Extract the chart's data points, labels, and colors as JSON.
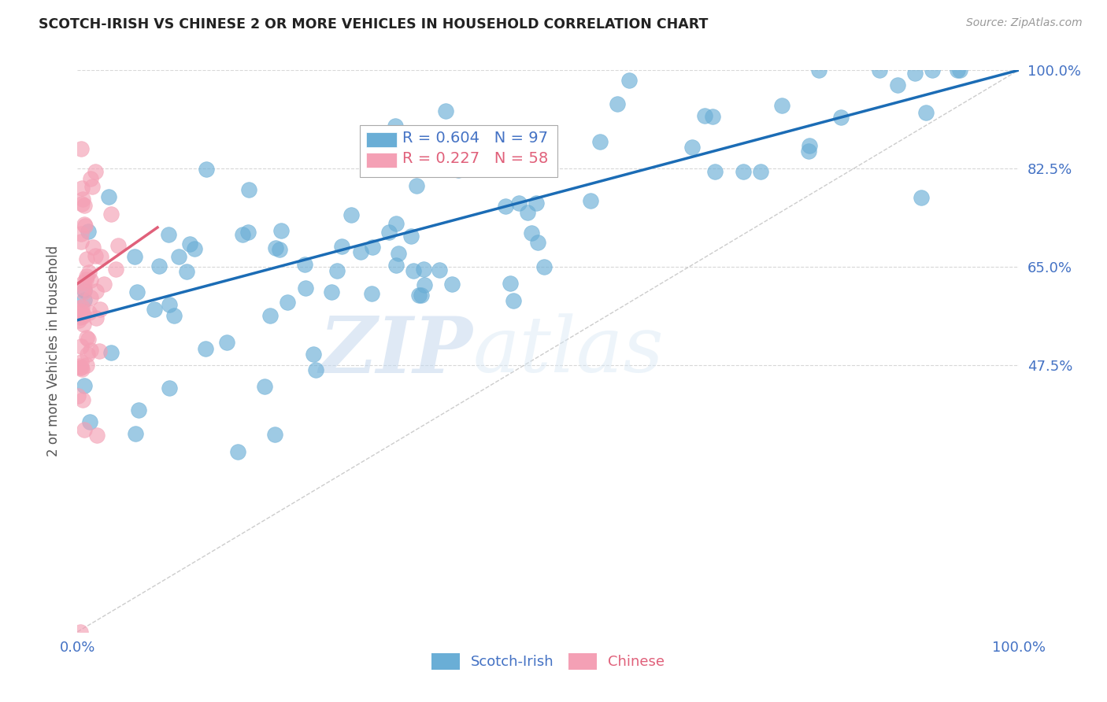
{
  "title": "SCOTCH-IRISH VS CHINESE 2 OR MORE VEHICLES IN HOUSEHOLD CORRELATION CHART",
  "source": "Source: ZipAtlas.com",
  "ylabel": "2 or more Vehicles in Household",
  "watermark_zip": "ZIP",
  "watermark_atlas": "atlas",
  "xlim": [
    0.0,
    1.0
  ],
  "ylim": [
    0.0,
    1.0
  ],
  "xticklabels_pos": [
    0.0,
    1.0
  ],
  "xticklabels": [
    "0.0%",
    "100.0%"
  ],
  "ytick_values": [
    0.475,
    0.65,
    0.825,
    1.0
  ],
  "ytick_labels": [
    "47.5%",
    "65.0%",
    "82.5%",
    "100.0%"
  ],
  "legend_r_scotch": "R = 0.604",
  "legend_n_scotch": "N = 97",
  "legend_r_chinese": "R = 0.227",
  "legend_n_chinese": "N = 58",
  "scotch_irish_color": "#6aaed6",
  "chinese_color": "#f4a0b5",
  "scotch_irish_line_color": "#1b6cb5",
  "chinese_line_color": "#e0607a",
  "diagonal_color": "#c0c0c0",
  "grid_color": "#c8c8c8",
  "title_color": "#222222",
  "axis_label_color": "#555555",
  "tick_color": "#4472c4",
  "scotch_line_x0": 0.0,
  "scotch_line_y0": 0.555,
  "scotch_line_x1": 1.0,
  "scotch_line_y1": 1.0,
  "chinese_line_x0": 0.0,
  "chinese_line_y0": 0.62,
  "chinese_line_x1": 0.085,
  "chinese_line_y1": 0.72,
  "scotch_seed": 7,
  "chinese_seed": 13
}
